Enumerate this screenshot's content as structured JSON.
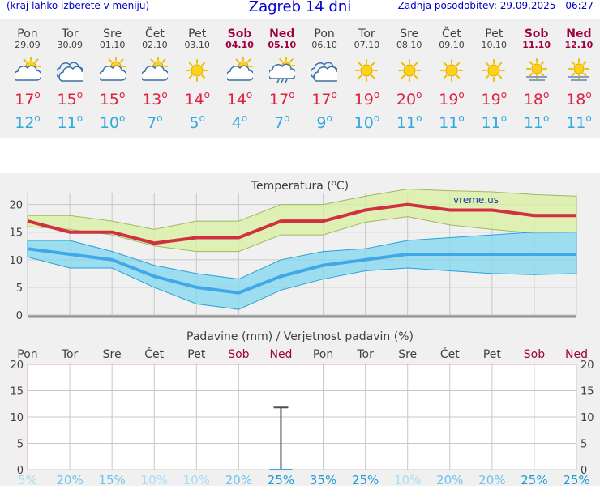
{
  "header": {
    "menu_link": "(kraj lahko izberete v meniju)",
    "title": "Zagreb 14 dni",
    "updated": "Zadnja posodobitev: 29.09.2025 - 06:27"
  },
  "forecast": [
    {
      "day": "Pon",
      "date": "29.09",
      "icon": "partly-cloudy-sun-icon",
      "max": "17",
      "min": "12",
      "weekend": false
    },
    {
      "day": "Tor",
      "date": "30.09",
      "icon": "cloudy-icon",
      "max": "15",
      "min": "11",
      "weekend": false
    },
    {
      "day": "Sre",
      "date": "01.10",
      "icon": "partly-cloudy-sun-icon",
      "max": "15",
      "min": "10",
      "weekend": false
    },
    {
      "day": "Čet",
      "date": "02.10",
      "icon": "partly-cloudy-sun-icon",
      "max": "13",
      "min": "7",
      "weekend": false
    },
    {
      "day": "Pet",
      "date": "03.10",
      "icon": "sun-icon",
      "max": "14",
      "min": "5",
      "weekend": false
    },
    {
      "day": "Sob",
      "date": "04.10",
      "icon": "partly-cloudy-sun-icon",
      "max": "14",
      "min": "4",
      "weekend": true
    },
    {
      "day": "Ned",
      "date": "05.10",
      "icon": "rain-cloud-sun-icon",
      "max": "17",
      "min": "7",
      "weekend": true
    },
    {
      "day": "Pon",
      "date": "06.10",
      "icon": "cloudy-icon",
      "max": "17",
      "min": "9",
      "weekend": false
    },
    {
      "day": "Tor",
      "date": "07.10",
      "icon": "sun-icon",
      "max": "19",
      "min": "10",
      "weekend": false
    },
    {
      "day": "Sre",
      "date": "08.10",
      "icon": "sun-icon",
      "max": "20",
      "min": "11",
      "weekend": false
    },
    {
      "day": "Čet",
      "date": "09.10",
      "icon": "sun-icon",
      "max": "19",
      "min": "11",
      "weekend": false
    },
    {
      "day": "Pet",
      "date": "10.10",
      "icon": "sun-icon",
      "max": "19",
      "min": "11",
      "weekend": false
    },
    {
      "day": "Sob",
      "date": "11.10",
      "icon": "hazy-sun-icon",
      "max": "18",
      "min": "11",
      "weekend": true
    },
    {
      "day": "Ned",
      "date": "12.10",
      "icon": "hazy-sun-icon",
      "max": "18",
      "min": "11",
      "weekend": true
    }
  ],
  "degree_symbol": "o",
  "colors": {
    "max": "#e02040",
    "min": "#30a8e0",
    "weekend": "#a00040",
    "band_max": "#d8f0a0",
    "band_min": "#80d8f0",
    "line_max": "#d03040",
    "line_min": "#40a8e8"
  },
  "chart_data": [
    {
      "type": "line",
      "title": "Temperatura (oC)",
      "watermark": "vreme.us",
      "categories": [
        "Pon",
        "Tor",
        "Sre",
        "Čet",
        "Pet",
        "Sob",
        "Ned",
        "Pon",
        "Tor",
        "Sre",
        "Čet",
        "Pet",
        "Sob",
        "Ned"
      ],
      "ylim": [
        0,
        22
      ],
      "yticks": [
        0,
        5,
        10,
        15,
        20
      ],
      "grid": true,
      "series": [
        {
          "values": [
            17,
            15,
            15,
            13,
            14,
            14,
            17,
            17,
            19,
            20,
            19,
            19,
            18,
            18
          ],
          "band_low": [
            16,
            15.5,
            14.5,
            12.5,
            11.5,
            11.5,
            14.5,
            14.5,
            16.8,
            17.8,
            16.3,
            15.5,
            14.8,
            15
          ],
          "band_high": [
            18,
            18,
            17,
            15.5,
            17,
            17,
            20,
            20,
            21.5,
            22.8,
            22.5,
            22.3,
            21.8,
            21.5
          ]
        },
        {
          "values": [
            12,
            11,
            10,
            7,
            5,
            4,
            7,
            9,
            10,
            11,
            11,
            11,
            11,
            11
          ],
          "band_low": [
            10.5,
            8.5,
            8.5,
            5,
            2,
            1,
            4.5,
            6.5,
            8,
            8.5,
            8,
            7.5,
            7.3,
            7.5
          ],
          "band_high": [
            13.5,
            13.5,
            11.5,
            9,
            7.5,
            6.5,
            10,
            11.5,
            12,
            13.5,
            14,
            14.5,
            15,
            15
          ]
        }
      ]
    },
    {
      "type": "bar",
      "title": "Padavine (mm) / Verjetnost padavin (%)",
      "categories": [
        "Pon",
        "Tor",
        "Sre",
        "Čet",
        "Pet",
        "Sob",
        "Ned",
        "Pon",
        "Tor",
        "Sre",
        "Čet",
        "Pet",
        "Sob",
        "Ned"
      ],
      "ylim": [
        0,
        20
      ],
      "yticks": [
        0,
        5,
        10,
        15,
        20
      ],
      "grid": true,
      "values": [
        0,
        0,
        0,
        0,
        0,
        0,
        0,
        0,
        0,
        0,
        0,
        0,
        0,
        0
      ],
      "error_bar": {
        "category_index": 6,
        "low": 0,
        "high": 11.8
      },
      "probability": [
        "5%",
        "20%",
        "15%",
        "10%",
        "10%",
        "20%",
        "25%",
        "35%",
        "25%",
        "10%",
        "20%",
        "20%",
        "25%",
        "25%"
      ],
      "probability_values": [
        5,
        20,
        15,
        10,
        10,
        20,
        25,
        35,
        25,
        10,
        20,
        20,
        25,
        25
      ]
    }
  ]
}
